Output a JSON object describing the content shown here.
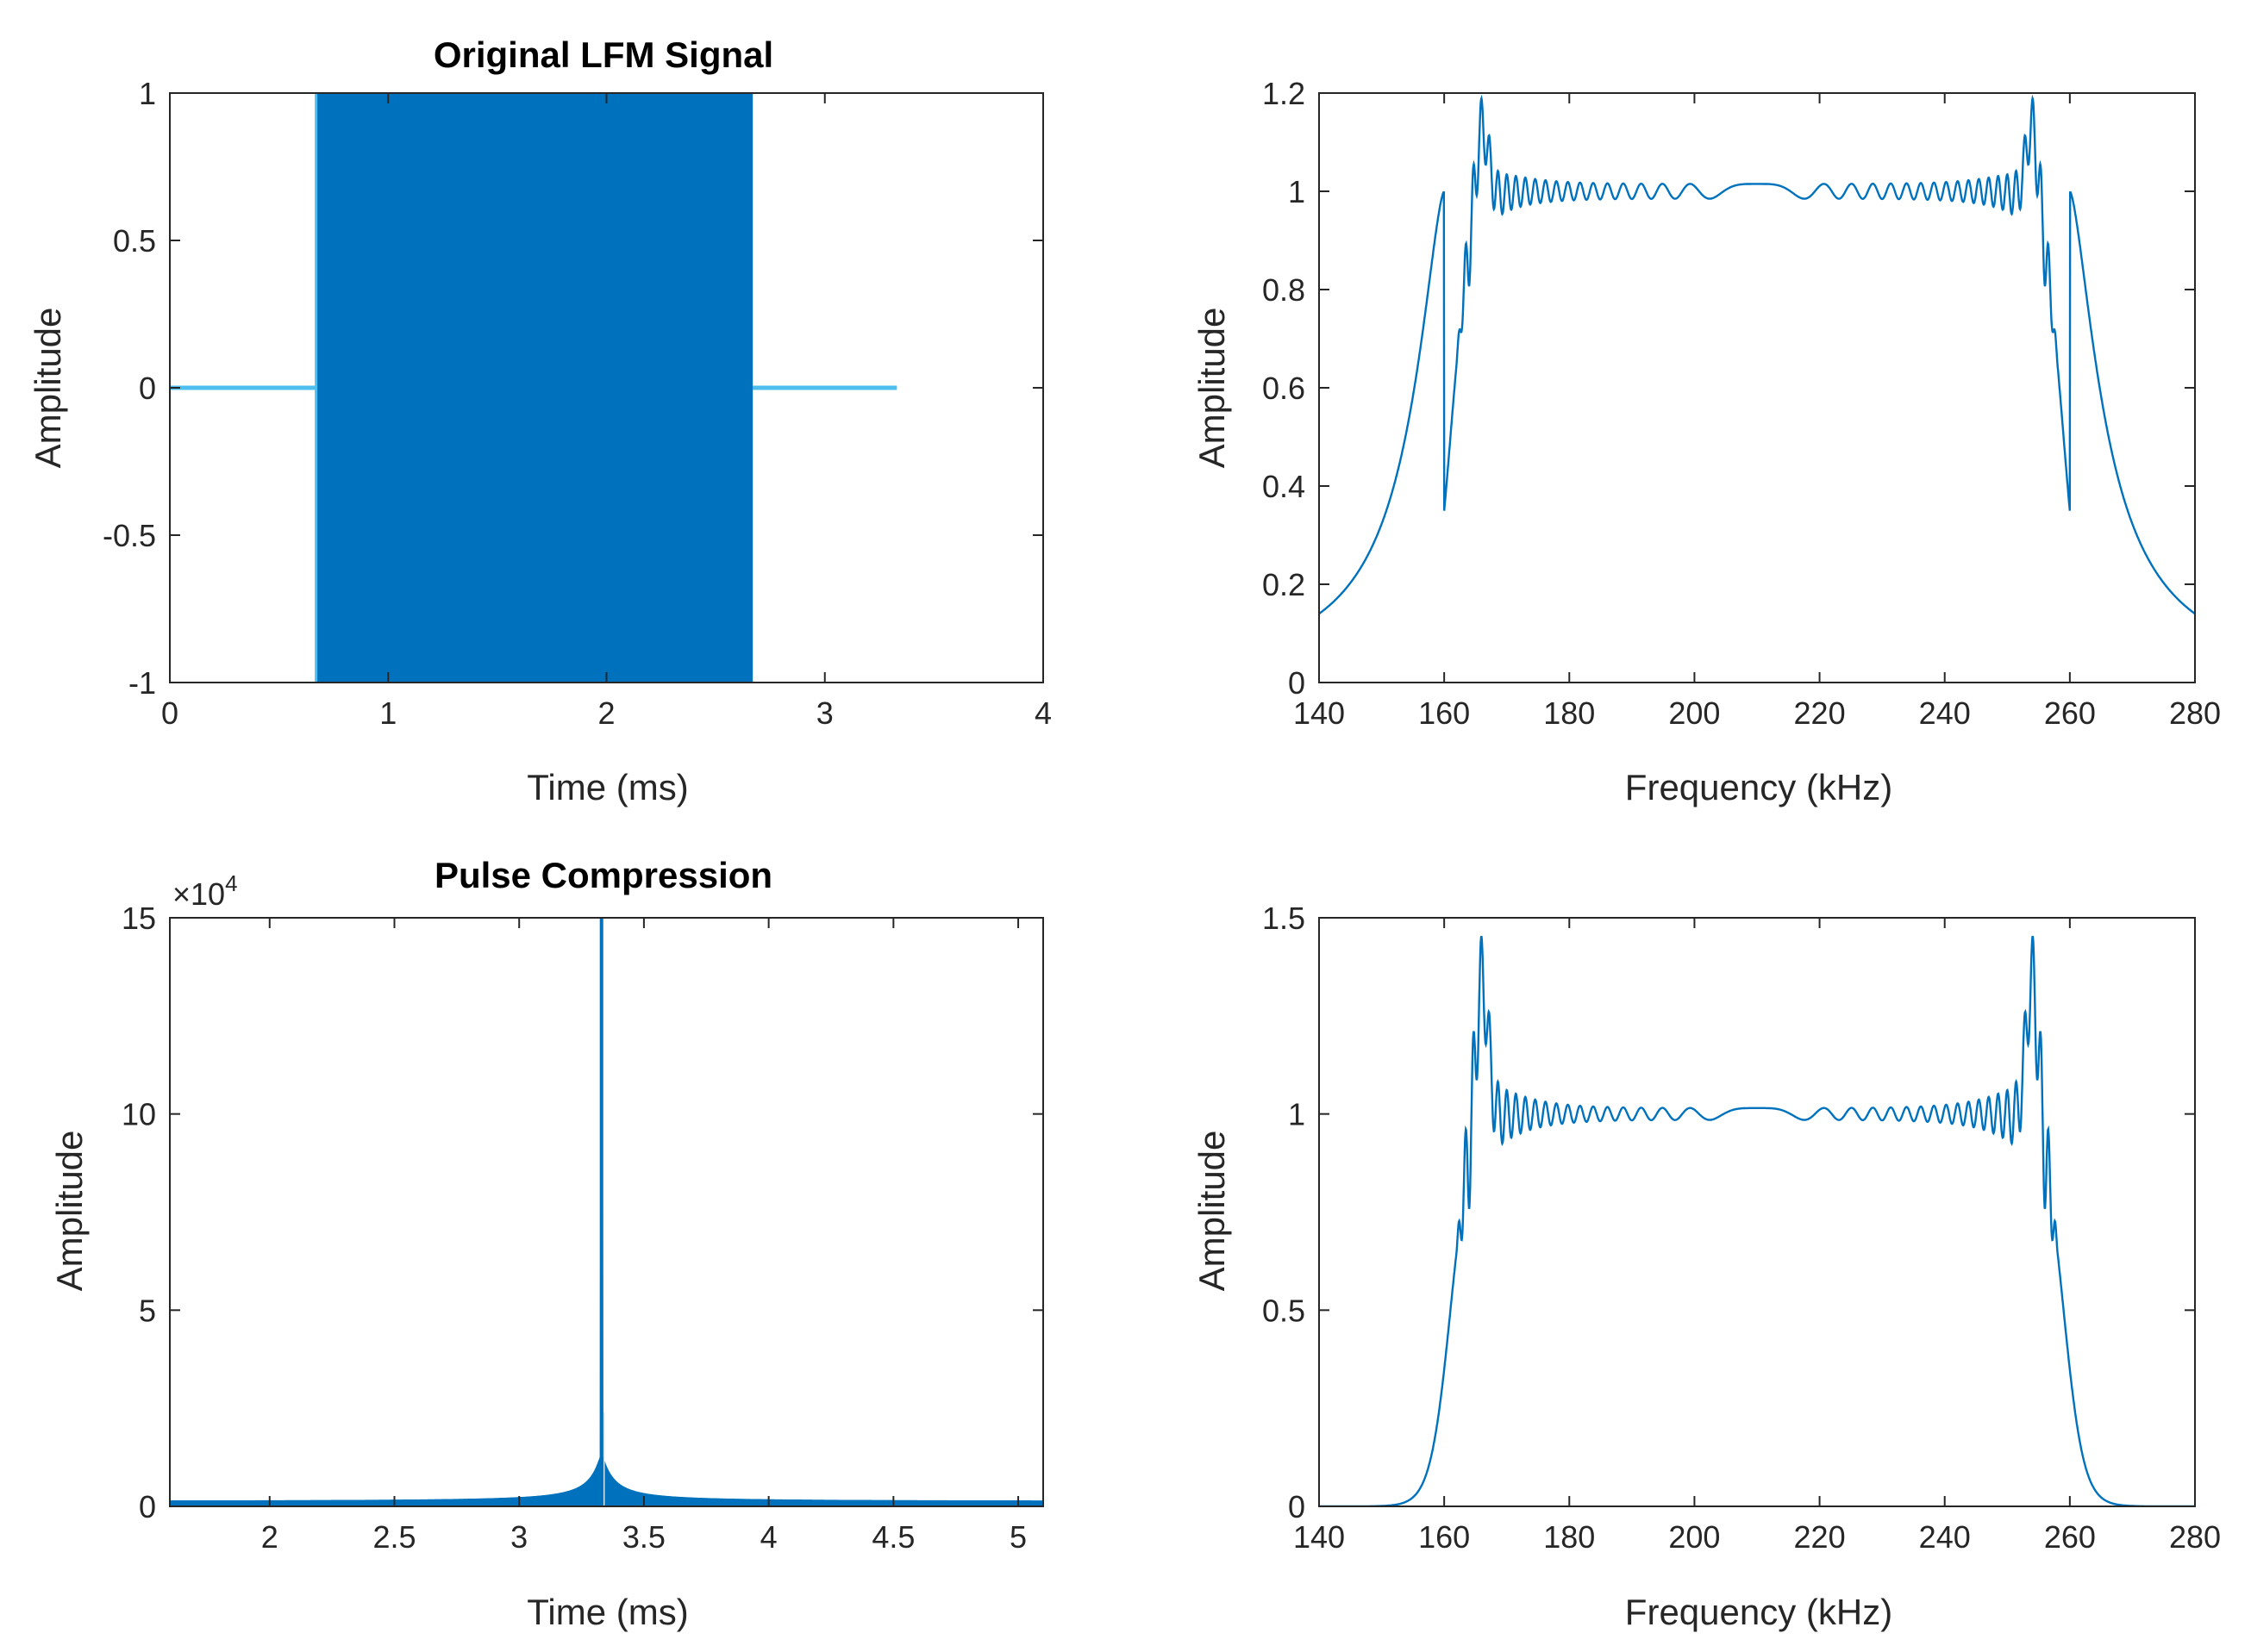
{
  "colors": {
    "line": "#0072bd",
    "fill": "#0072bd",
    "axis": "#262626",
    "background": "#ffffff"
  },
  "chart_data": [
    {
      "id": "lfm",
      "type": "line",
      "title": "Original LFM Signal",
      "xlabel": "Time (ms)",
      "ylabel": "Amplitude",
      "xlim": [
        0,
        4
      ],
      "ylim": [
        -1,
        1
      ],
      "xticks": [
        0,
        1,
        2,
        3,
        4
      ],
      "xtick_labels": [
        "0",
        "1",
        "2",
        "3",
        "4"
      ],
      "yticks": [
        -1,
        -0.5,
        0,
        0.5,
        1
      ],
      "ytick_labels": [
        "-1",
        "-0.5",
        "0",
        "0.5",
        "1"
      ],
      "series": [
        {
          "name": "LFM signal",
          "kind": "flat-pulse-flat",
          "start": 0,
          "pulse_start": 0.67,
          "pulse_end": 2.67,
          "end": 3.33,
          "amplitude": 1
        }
      ]
    },
    {
      "id": "spectrum1",
      "type": "line",
      "title": "",
      "xlabel": "Frequency (kHz)",
      "ylabel": "Amplitude",
      "xlim": [
        140,
        280
      ],
      "ylim": [
        0,
        1.2
      ],
      "xticks": [
        140,
        160,
        180,
        200,
        220,
        240,
        260,
        280
      ],
      "xtick_labels": [
        "140",
        "160",
        "180",
        "200",
        "220",
        "240",
        "260",
        "280"
      ],
      "yticks": [
        0,
        0.2,
        0.4,
        0.6,
        0.8,
        1,
        1.2
      ],
      "ytick_labels": [
        "0",
        "0.2",
        "0.4",
        "0.6",
        "0.8",
        "1",
        "1.2"
      ],
      "spectrum_model": {
        "kind": "lorentz",
        "f_low": 160,
        "f_high": 260,
        "peak": 1.17,
        "ripple": 0.14,
        "tail": 0.05
      }
    },
    {
      "id": "compression",
      "type": "line",
      "title": "Pulse Compression",
      "xlabel": "Time (ms)",
      "ylabel": "Amplitude",
      "exponent_label": {
        "base": "×10",
        "power": "4"
      },
      "xlim": [
        1.6,
        5.1
      ],
      "ylim": [
        0,
        15
      ],
      "xticks": [
        2,
        2.5,
        3,
        3.5,
        4,
        4.5,
        5
      ],
      "xtick_labels": [
        "2",
        "2.5",
        "3",
        "3.5",
        "4",
        "4.5",
        "5"
      ],
      "yticks": [
        0,
        5,
        10,
        15
      ],
      "ytick_labels": [
        "0",
        "5",
        "10",
        "15"
      ],
      "peak": {
        "x": 3.33,
        "y": 15
      }
    },
    {
      "id": "spectrum2",
      "type": "line",
      "title": "",
      "xlabel": "Frequency (kHz)",
      "ylabel": "Amplitude",
      "xlim": [
        140,
        280
      ],
      "ylim": [
        0,
        1.5
      ],
      "xticks": [
        140,
        160,
        180,
        200,
        220,
        240,
        260,
        280
      ],
      "xtick_labels": [
        "140",
        "160",
        "180",
        "200",
        "220",
        "240",
        "260",
        "280"
      ],
      "yticks": [
        0,
        0.5,
        1,
        1.5
      ],
      "ytick_labels": [
        "0",
        "0.5",
        "1",
        "1.5"
      ],
      "spectrum_model": {
        "kind": "gauss",
        "f_low": 160,
        "f_high": 260,
        "peak": 1.38,
        "ripple": 0.3,
        "tail": 0
      }
    }
  ]
}
